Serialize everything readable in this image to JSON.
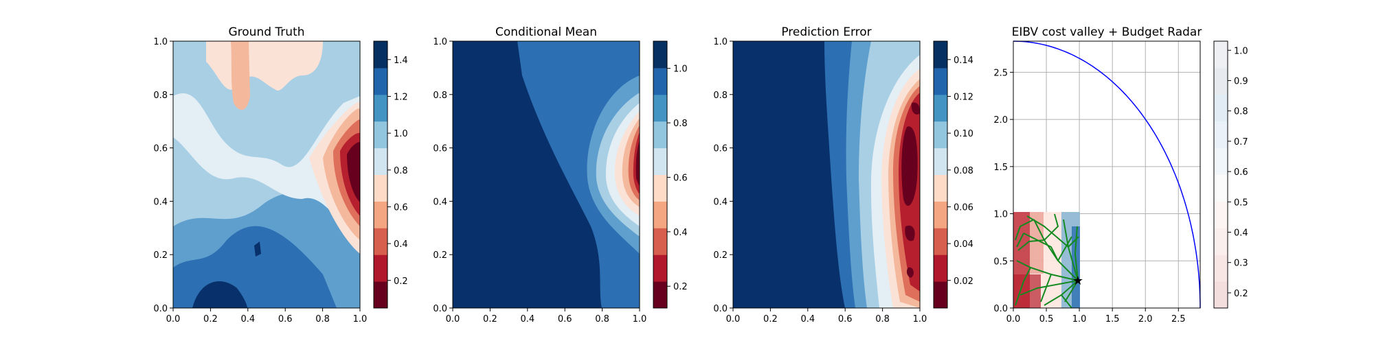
{
  "chart_data": [
    {
      "type": "heatmap",
      "title": "Ground Truth",
      "xlabel": "",
      "ylabel": "",
      "xlim": [
        0,
        1
      ],
      "ylim": [
        0,
        1
      ],
      "xticks": [
        "0.0",
        "0.2",
        "0.4",
        "0.6",
        "0.8",
        "1.0"
      ],
      "yticks": [
        "0.0",
        "0.2",
        "0.4",
        "0.6",
        "0.8",
        "1.0"
      ],
      "colormap": "RdBu",
      "colorbar": {
        "ticks": [
          "0.2",
          "0.4",
          "0.6",
          "0.8",
          "1.0",
          "1.2",
          "1.4"
        ],
        "range": [
          0.05,
          1.5
        ]
      }
    },
    {
      "type": "heatmap",
      "title": "Conditional Mean",
      "xlabel": "",
      "ylabel": "",
      "xlim": [
        0,
        1
      ],
      "ylim": [
        0,
        1
      ],
      "xticks": [
        "0.0",
        "0.2",
        "0.4",
        "0.6",
        "0.8",
        "1.0"
      ],
      "yticks": [
        "0.0",
        "0.2",
        "0.4",
        "0.6",
        "0.8",
        "1.0"
      ],
      "colormap": "RdBu",
      "colorbar": {
        "ticks": [
          "0.2",
          "0.4",
          "0.6",
          "0.8",
          "1.0"
        ],
        "range": [
          0.12,
          1.1
        ]
      }
    },
    {
      "type": "heatmap",
      "title": "Prediction Error",
      "xlabel": "",
      "ylabel": "",
      "xlim": [
        0,
        1
      ],
      "ylim": [
        0,
        1
      ],
      "xticks": [
        "0.0",
        "0.2",
        "0.4",
        "0.6",
        "0.8",
        "1.0"
      ],
      "yticks": [
        "0.0",
        "0.2",
        "0.4",
        "0.6",
        "0.8",
        "1.0"
      ],
      "colormap": "RdBu",
      "colorbar": {
        "ticks": [
          "0.02",
          "0.04",
          "0.06",
          "0.08",
          "0.10",
          "0.12",
          "0.14"
        ],
        "range": [
          0.005,
          0.15
        ]
      }
    },
    {
      "type": "heatmap",
      "title": "EIBV cost valley + Budget Radar",
      "xlabel": "",
      "ylabel": "",
      "xlim": [
        0,
        2.83
      ],
      "ylim": [
        0,
        2.83
      ],
      "xticks": [
        "0.0",
        "0.5",
        "1.0",
        "1.5",
        "2.0",
        "2.5"
      ],
      "yticks": [
        "0.0",
        "0.5",
        "1.0",
        "1.5",
        "2.0",
        "2.5"
      ],
      "grid": true,
      "colormap": "RdBu",
      "colorbar": {
        "ticks": [
          "0.2",
          "0.3",
          "0.4",
          "0.5",
          "0.6",
          "0.7",
          "0.8",
          "0.9",
          "1.0"
        ],
        "range": [
          0.15,
          1.03
        ]
      },
      "budget_radius": 2.83,
      "current_location": [
        0.97,
        0.3
      ],
      "overlays": [
        "budget-circle",
        "tree-paths",
        "star-marker"
      ]
    }
  ]
}
